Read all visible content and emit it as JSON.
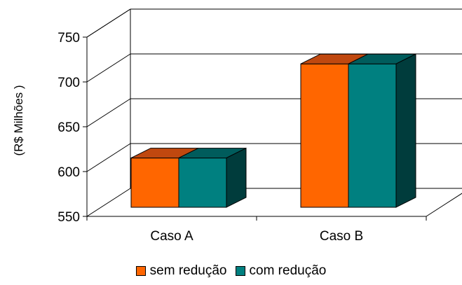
{
  "chart_data": {
    "type": "bar",
    "categories": [
      "Caso A",
      "Caso B"
    ],
    "series": [
      {
        "name": "sem redução",
        "values": [
          605,
          710
        ],
        "color": "#FF6600",
        "top_color": "#C0480F"
      },
      {
        "name": "com redução",
        "values": [
          605,
          710
        ],
        "color": "#008080",
        "top_color": "#005C5C",
        "side_color": "#003C3C"
      }
    ],
    "ylabel": "(R$ Milhões )",
    "yticks": [
      550,
      600,
      650,
      700,
      750
    ],
    "ylim": [
      550,
      750
    ],
    "grid": true,
    "three_d": true,
    "legend_position": "bottom"
  }
}
